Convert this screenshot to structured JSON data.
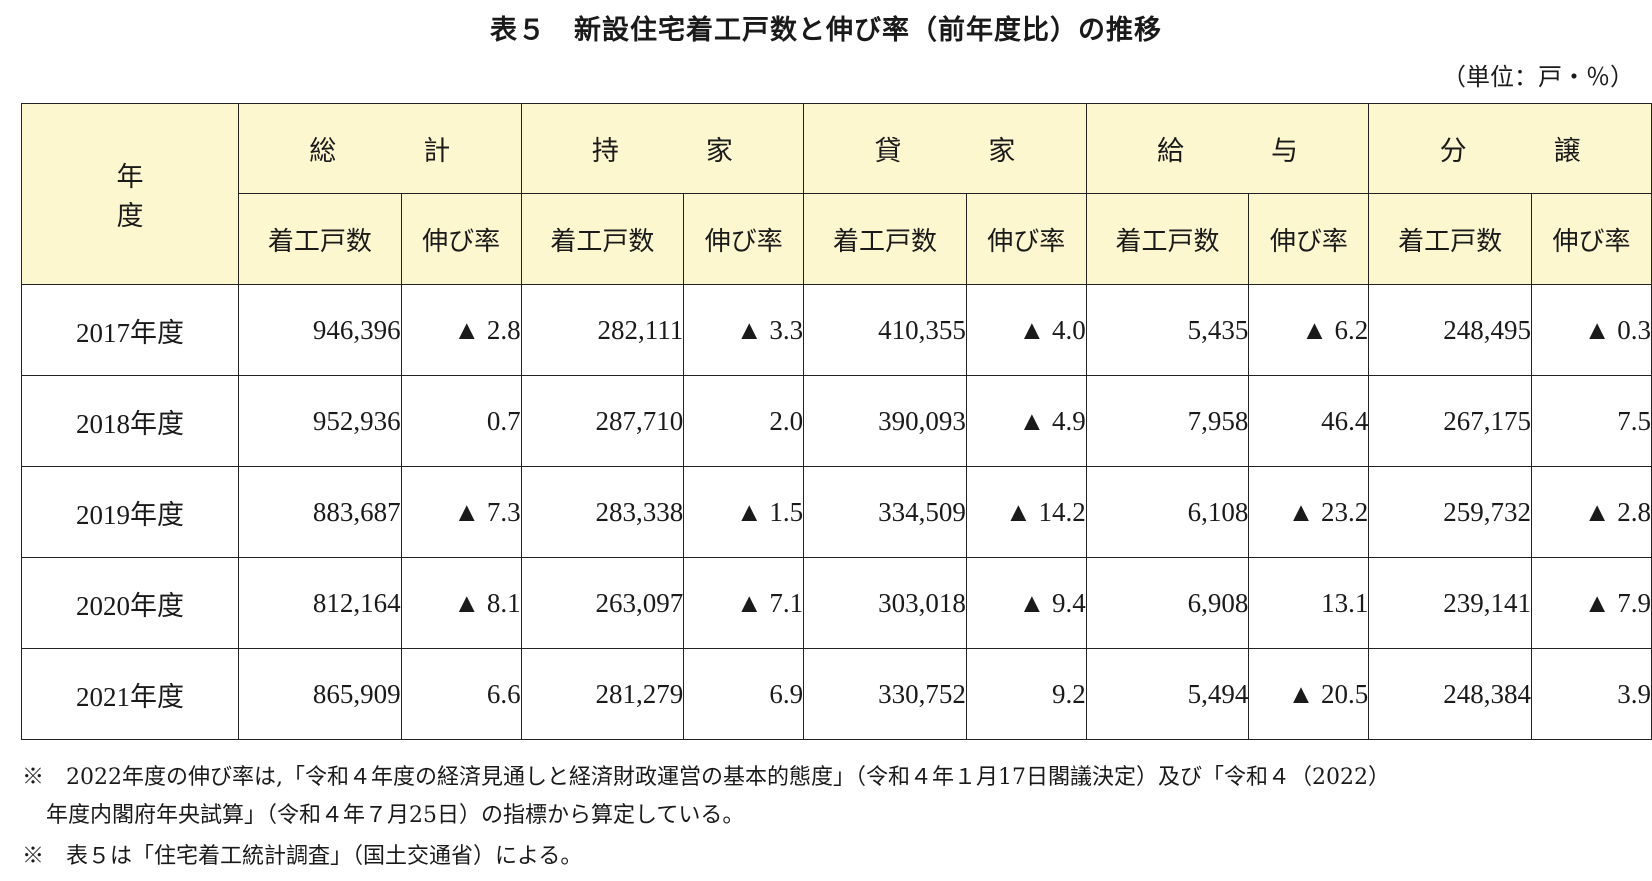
{
  "title": "表５　新設住宅着工戸数と伸び率（前年度比）の推移",
  "unit": "（単位：戸・％）",
  "header": {
    "year_label": "年　度",
    "groups": [
      "総　計",
      "持　家",
      "貸　家",
      "給　与",
      "分　譲"
    ],
    "sub_count": "着工戸数",
    "sub_rate": "伸び率"
  },
  "rows": [
    {
      "year": "2017年度",
      "cells": [
        "946,396",
        "▲ 2.8",
        "282,111",
        "▲ 3.3",
        "410,355",
        "▲ 4.0",
        "5,435",
        "▲ 6.2",
        "248,495",
        "▲ 0.3"
      ]
    },
    {
      "year": "2018年度",
      "cells": [
        "952,936",
        "0.7",
        "287,710",
        "2.0",
        "390,093",
        "▲ 4.9",
        "7,958",
        "46.4",
        "267,175",
        "7.5"
      ]
    },
    {
      "year": "2019年度",
      "cells": [
        "883,687",
        "▲ 7.3",
        "283,338",
        "▲ 1.5",
        "334,509",
        "▲ 14.2",
        "6,108",
        "▲ 23.2",
        "259,732",
        "▲ 2.8"
      ]
    },
    {
      "year": "2020年度",
      "cells": [
        "812,164",
        "▲ 8.1",
        "263,097",
        "▲ 7.1",
        "303,018",
        "▲ 9.4",
        "6,908",
        "13.1",
        "239,141",
        "▲ 7.9"
      ]
    },
    {
      "year": "2021年度",
      "cells": [
        "865,909",
        "6.6",
        "281,279",
        "6.9",
        "330,752",
        "9.2",
        "5,494",
        "▲ 20.5",
        "248,384",
        "3.9"
      ]
    }
  ],
  "footnotes": [
    "※　2022年度の伸び率は,「令和４年度の経済見通しと経済財政運営の基本的態度」（令和４年１月17日閣議決定）及び「令和４（2022）",
    "年度内閣府年央試算」（令和４年７月25日）の指標から算定している。",
    "※　表５は「住宅着工統計調査」（国土交通省）による。"
  ]
}
